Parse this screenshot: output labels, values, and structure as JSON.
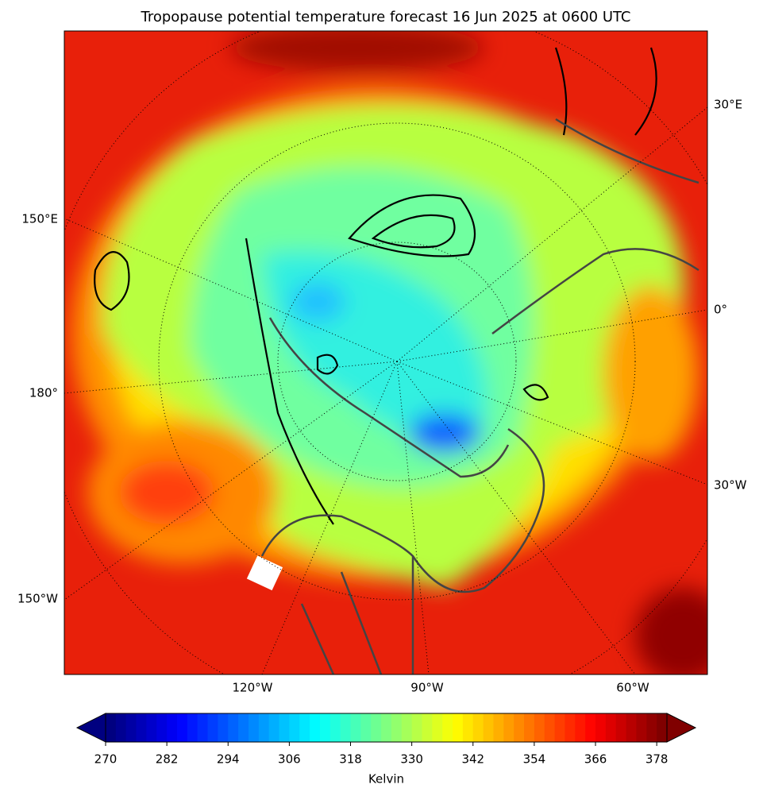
{
  "title": "Tropopause potential temperature forecast 16 Jun 2025 at 0600 UTC",
  "map": {
    "meridian_labels_right": [
      "30°E",
      "0°",
      "30°W"
    ],
    "meridian_labels_left": [
      "150°E",
      "180°",
      "150°W"
    ],
    "meridian_labels_bottom": [
      "120°W",
      "90°W",
      "60°W"
    ]
  },
  "colorbar": {
    "label": "Kelvin",
    "xlim": [
      270,
      380
    ],
    "xticks": [
      270,
      282,
      294,
      306,
      318,
      330,
      342,
      354,
      366,
      378
    ],
    "colormap": "jet",
    "extend": "both"
  }
}
